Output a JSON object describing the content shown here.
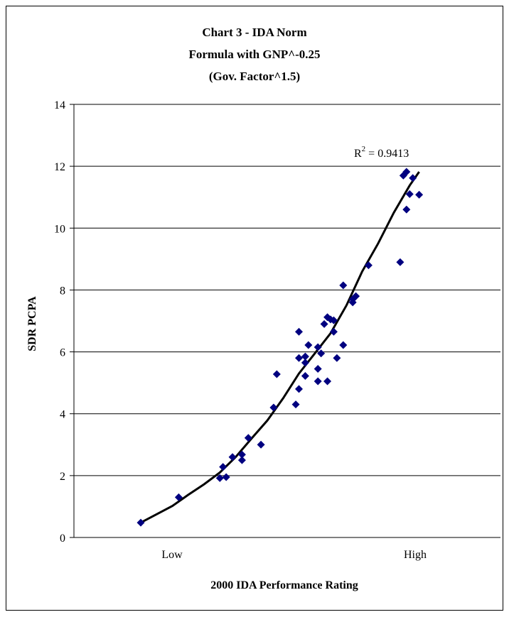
{
  "chart_data": {
    "type": "scatter",
    "title_lines": [
      "Chart 3 - IDA Norm",
      "Formula with GNP^-0.25",
      "(Gov. Factor^1.5)"
    ],
    "xlabel": "2000 IDA Performance Rating",
    "ylabel": "SDR PCPA",
    "x_tick_labels": [
      "Low",
      "High"
    ],
    "ylim": [
      0,
      14
    ],
    "y_ticks": [
      0,
      2,
      4,
      6,
      8,
      10,
      12,
      14
    ],
    "grid": "horizontal",
    "r2_label": "R",
    "r2_exp": "2",
    "r2_value": " = 0.9413",
    "marker_color": "#000080",
    "trend_color": "#000000",
    "points": [
      [
        0.0,
        0.48
      ],
      [
        0.12,
        1.3
      ],
      [
        0.25,
        1.92
      ],
      [
        0.27,
        1.95
      ],
      [
        0.26,
        2.28
      ],
      [
        0.29,
        2.6
      ],
      [
        0.32,
        2.5
      ],
      [
        0.32,
        2.68
      ],
      [
        0.34,
        3.22
      ],
      [
        0.38,
        3.0
      ],
      [
        0.42,
        4.2
      ],
      [
        0.43,
        5.28
      ],
      [
        0.49,
        4.3
      ],
      [
        0.5,
        4.8
      ],
      [
        0.5,
        5.8
      ],
      [
        0.5,
        6.65
      ],
      [
        0.52,
        5.85
      ],
      [
        0.52,
        5.65
      ],
      [
        0.52,
        5.22
      ],
      [
        0.53,
        6.22
      ],
      [
        0.56,
        5.05
      ],
      [
        0.56,
        5.45
      ],
      [
        0.56,
        6.15
      ],
      [
        0.57,
        5.95
      ],
      [
        0.58,
        6.9
      ],
      [
        0.59,
        7.12
      ],
      [
        0.59,
        5.05
      ],
      [
        0.6,
        7.05
      ],
      [
        0.61,
        6.65
      ],
      [
        0.61,
        7.02
      ],
      [
        0.62,
        5.8
      ],
      [
        0.64,
        6.22
      ],
      [
        0.64,
        8.15
      ],
      [
        0.67,
        7.6
      ],
      [
        0.67,
        7.7
      ],
      [
        0.68,
        7.8
      ],
      [
        0.72,
        8.8
      ],
      [
        0.82,
        8.9
      ],
      [
        0.83,
        11.7
      ],
      [
        0.84,
        11.82
      ],
      [
        0.84,
        10.6
      ],
      [
        0.85,
        11.1
      ],
      [
        0.86,
        11.62
      ],
      [
        0.88,
        11.08
      ]
    ],
    "trendline": [
      [
        0.0,
        0.48
      ],
      [
        0.05,
        0.75
      ],
      [
        0.1,
        1.02
      ],
      [
        0.15,
        1.38
      ],
      [
        0.2,
        1.72
      ],
      [
        0.25,
        2.1
      ],
      [
        0.3,
        2.6
      ],
      [
        0.35,
        3.2
      ],
      [
        0.4,
        3.78
      ],
      [
        0.45,
        4.5
      ],
      [
        0.5,
        5.3
      ],
      [
        0.55,
        5.95
      ],
      [
        0.6,
        6.6
      ],
      [
        0.65,
        7.5
      ],
      [
        0.7,
        8.6
      ],
      [
        0.75,
        9.5
      ],
      [
        0.8,
        10.5
      ],
      [
        0.85,
        11.38
      ],
      [
        0.88,
        11.82
      ]
    ]
  }
}
